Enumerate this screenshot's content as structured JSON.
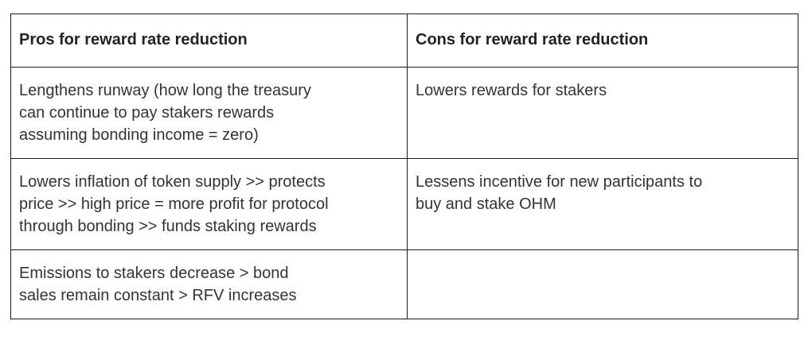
{
  "table": {
    "headers": {
      "pros": "Pros for reward rate reduction",
      "cons": "Cons for reward rate reduction"
    },
    "rows": [
      {
        "pros": "Lengthens runway (how long the treasury\ncan continue to pay stakers rewards\nassuming bonding income = zero)",
        "cons": "Lowers rewards for stakers"
      },
      {
        "pros": "Lowers inflation of token supply >> protects\nprice >> high price = more profit for protocol\nthrough bonding >> funds staking rewards",
        "cons": "Lessens incentive for new participants to\nbuy and stake OHM"
      },
      {
        "pros": "Emissions to stakers decrease >  bond\nsales remain constant > RFV increases",
        "cons": ""
      }
    ]
  }
}
